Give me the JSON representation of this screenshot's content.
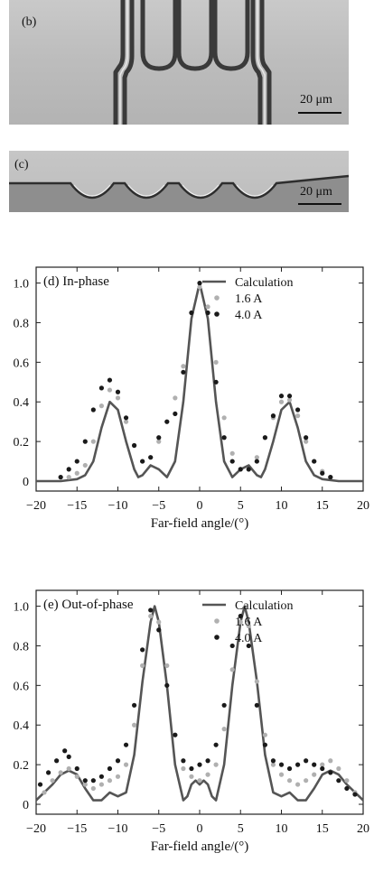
{
  "panel_b": {
    "tag": "(b)",
    "scalebar": "20 μm"
  },
  "panel_c": {
    "tag": "(c)",
    "scalebar": "20 μm"
  },
  "chart_data": [
    {
      "type": "line",
      "title": "(d) In-phase",
      "xlabel": "Far-field angle/(°)",
      "ylabel": "",
      "xlim": [
        -20,
        20
      ],
      "ylim": [
        -0.05,
        1.08
      ],
      "x_ticks": [
        -20,
        -15,
        -10,
        -5,
        0,
        5,
        10,
        15,
        20
      ],
      "y_ticks": [
        0,
        0.2,
        0.4,
        0.6,
        0.8,
        1.0
      ],
      "tick_labels_y": [
        "0",
        "0.2",
        "0.4",
        "0.6",
        "0.8",
        "1.0"
      ],
      "legend": {
        "placement": "top-right",
        "entries": [
          "Calculation",
          "1.6 A",
          "4.0 A"
        ]
      },
      "series": [
        {
          "name": "Calculation",
          "style": "line",
          "color": "#555555",
          "x": [
            -20,
            -17,
            -15,
            -14,
            -13,
            -12,
            -11,
            -10,
            -9,
            -8,
            -7.5,
            -7,
            -6,
            -5,
            -4,
            -3,
            -2,
            -1,
            0,
            1,
            2,
            3,
            4,
            5,
            6,
            7,
            7.5,
            8,
            9,
            10,
            11,
            12,
            13,
            14,
            15,
            17,
            20
          ],
          "y": [
            0,
            0,
            0.01,
            0.03,
            0.1,
            0.27,
            0.4,
            0.36,
            0.2,
            0.06,
            0.02,
            0.03,
            0.08,
            0.06,
            0.02,
            0.1,
            0.4,
            0.82,
            1.0,
            0.82,
            0.4,
            0.1,
            0.02,
            0.06,
            0.08,
            0.03,
            0.02,
            0.06,
            0.2,
            0.36,
            0.4,
            0.27,
            0.1,
            0.03,
            0.01,
            0,
            0
          ]
        },
        {
          "name": "1.6 A",
          "style": "markers",
          "color": "#b0b0b0",
          "x": [
            -16,
            -15,
            -14,
            -13,
            -12,
            -11,
            -10,
            -9,
            -8,
            -7,
            -6,
            -5,
            -4,
            -3,
            -2,
            -1,
            0,
            1,
            2,
            3,
            4,
            5,
            6,
            7,
            8,
            9,
            10,
            11,
            12,
            13,
            14,
            15,
            16
          ],
          "y": [
            0.02,
            0.04,
            0.08,
            0.2,
            0.38,
            0.46,
            0.42,
            0.3,
            0.18,
            0.1,
            0.12,
            0.2,
            0.3,
            0.42,
            0.58,
            0.85,
            0.98,
            0.88,
            0.6,
            0.32,
            0.14,
            0.06,
            0.06,
            0.12,
            0.22,
            0.32,
            0.4,
            0.41,
            0.33,
            0.2,
            0.1,
            0.05,
            0.02
          ]
        },
        {
          "name": "4.0 A",
          "style": "markers",
          "color": "#1a1a1a",
          "x": [
            -17,
            -16,
            -15,
            -14,
            -13,
            -12,
            -11,
            -10,
            -9,
            -8,
            -7,
            -6,
            -5,
            -4,
            -3,
            -2,
            -1,
            0,
            1,
            2,
            3,
            4,
            5,
            6,
            7,
            8,
            9,
            10,
            11,
            12,
            13,
            14,
            15,
            16
          ],
          "y": [
            0.02,
            0.06,
            0.1,
            0.2,
            0.36,
            0.47,
            0.51,
            0.45,
            0.32,
            0.18,
            0.1,
            0.12,
            0.22,
            0.3,
            0.34,
            0.55,
            0.85,
            1.0,
            0.85,
            0.5,
            0.22,
            0.1,
            0.06,
            0.06,
            0.1,
            0.22,
            0.33,
            0.43,
            0.43,
            0.36,
            0.22,
            0.1,
            0.04,
            0.02
          ]
        }
      ]
    },
    {
      "type": "line",
      "title": "(e) Out-of-phase",
      "xlabel": "Far-field angle/(°)",
      "ylabel": "",
      "xlim": [
        -20,
        20
      ],
      "ylim": [
        -0.05,
        1.08
      ],
      "x_ticks": [
        -20,
        -15,
        -10,
        -5,
        0,
        5,
        10,
        15,
        20
      ],
      "y_ticks": [
        0,
        0.2,
        0.4,
        0.6,
        0.8,
        1.0
      ],
      "tick_labels_y": [
        "0",
        "0.2",
        "0.4",
        "0.6",
        "0.8",
        "1.0"
      ],
      "legend": {
        "placement": "top-right",
        "entries": [
          "Calculation",
          "1.6 A",
          "4.0 A"
        ]
      },
      "series": [
        {
          "name": "Calculation",
          "style": "line",
          "color": "#555555",
          "x": [
            -20,
            -18,
            -17,
            -16,
            -15,
            -14,
            -13,
            -12,
            -11,
            -10,
            -9,
            -8,
            -7,
            -6,
            -5.5,
            -5,
            -4,
            -3,
            -2,
            -1.5,
            -1,
            -0.5,
            0,
            0.5,
            1,
            1.5,
            2,
            3,
            4,
            5,
            5.5,
            6,
            7,
            8,
            9,
            10,
            11,
            12,
            13,
            14,
            15,
            16,
            17,
            18,
            20
          ],
          "y": [
            0.02,
            0.1,
            0.15,
            0.17,
            0.15,
            0.08,
            0.02,
            0.02,
            0.06,
            0.04,
            0.06,
            0.25,
            0.62,
            0.92,
            1.0,
            0.92,
            0.6,
            0.2,
            0.02,
            0.04,
            0.1,
            0.12,
            0.1,
            0.12,
            0.1,
            0.04,
            0.02,
            0.2,
            0.6,
            0.92,
            1.0,
            0.92,
            0.62,
            0.25,
            0.06,
            0.04,
            0.06,
            0.02,
            0.02,
            0.08,
            0.15,
            0.17,
            0.15,
            0.1,
            0.02
          ]
        },
        {
          "name": "1.6 A",
          "style": "markers",
          "color": "#b0b0b0",
          "x": [
            -19,
            -18,
            -17,
            -16,
            -15,
            -14,
            -13,
            -12,
            -11,
            -10,
            -9,
            -8,
            -7,
            -6,
            -5,
            -4,
            -3,
            -2,
            -1,
            0,
            1,
            2,
            3,
            4,
            5,
            6,
            7,
            8,
            9,
            10,
            11,
            12,
            13,
            14,
            15,
            16,
            17,
            18,
            19
          ],
          "y": [
            0.06,
            0.12,
            0.16,
            0.18,
            0.14,
            0.1,
            0.08,
            0.1,
            0.12,
            0.14,
            0.2,
            0.4,
            0.7,
            0.95,
            0.92,
            0.7,
            0.35,
            0.18,
            0.14,
            0.12,
            0.15,
            0.2,
            0.38,
            0.68,
            0.92,
            0.9,
            0.62,
            0.35,
            0.2,
            0.15,
            0.12,
            0.1,
            0.12,
            0.15,
            0.2,
            0.22,
            0.18,
            0.12,
            0.06
          ]
        },
        {
          "name": "4.0 A",
          "style": "markers",
          "color": "#1a1a1a",
          "x": [
            -19.5,
            -18.5,
            -17.5,
            -16.5,
            -16,
            -15,
            -14,
            -13,
            -12,
            -11,
            -10,
            -9,
            -8,
            -7,
            -6,
            -5,
            -4,
            -3,
            -2,
            -1,
            0,
            1,
            2,
            3,
            4,
            5,
            6,
            7,
            8,
            9,
            10,
            11,
            12,
            13,
            14,
            15,
            16,
            17,
            18,
            19
          ],
          "y": [
            0.1,
            0.16,
            0.22,
            0.27,
            0.24,
            0.18,
            0.12,
            0.12,
            0.14,
            0.18,
            0.22,
            0.3,
            0.5,
            0.78,
            0.98,
            0.88,
            0.6,
            0.35,
            0.22,
            0.18,
            0.2,
            0.22,
            0.3,
            0.5,
            0.8,
            0.95,
            0.8,
            0.5,
            0.3,
            0.22,
            0.2,
            0.18,
            0.2,
            0.22,
            0.2,
            0.18,
            0.16,
            0.12,
            0.08,
            0.05
          ]
        }
      ]
    }
  ]
}
